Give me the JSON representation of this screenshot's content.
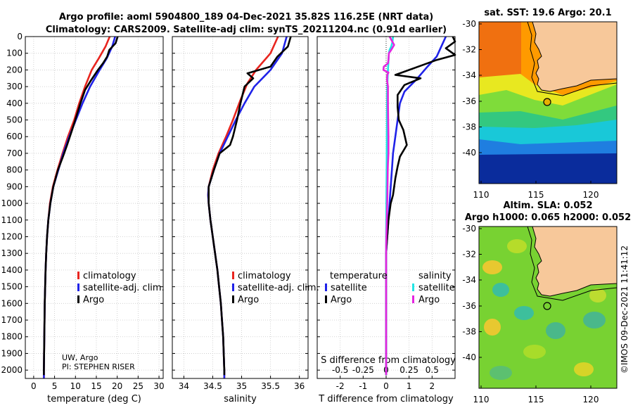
{
  "titles": {
    "line1": "Argo profile: aoml 5904800_189 04-Dec-2021 35.82S 116.25E (NRT data)",
    "line2": "Climatology: CARS2009. Satellite-adj clim: synTS_20211204.nc (0.91d earlier)",
    "sst_map": "sat. SST: 19.6 Argo: 20.1",
    "sla_map_1": "Altim. SLA: 0.052",
    "sla_map_2": "Argo h1000: 0.065 h2000: 0.052",
    "watermark": "©IMOS 09-Dec-2021 11:41:12"
  },
  "credit": {
    "line1": "UW, Argo",
    "line2": "PI: STEPHEN RISER"
  },
  "colors": {
    "climatology": "#e8251f",
    "satellite": "#1f22e8",
    "argo": "#000000",
    "s_satellite": "#22e5e5",
    "s_argo": "#e525e0",
    "land": "#f7c89a"
  },
  "chart_data": [
    {
      "type": "line",
      "title": "temperature",
      "xlabel": "temperature (deg C)",
      "ylabel": "depth",
      "xlim": [
        -2,
        31
      ],
      "ylim": [
        2050,
        0
      ],
      "xticks": [
        0,
        5,
        10,
        15,
        20,
        25,
        30
      ],
      "yticks": [
        0,
        100,
        200,
        300,
        400,
        500,
        600,
        700,
        800,
        900,
        1000,
        1100,
        1200,
        1300,
        1400,
        1500,
        1600,
        1700,
        1800,
        1900,
        2000
      ],
      "legend": [
        "climatology",
        "satellite-adj. clim.",
        "Argo"
      ],
      "series": [
        {
          "name": "climatology",
          "color": "#e8251f",
          "points": [
            [
              18.2,
              0
            ],
            [
              17.2,
              60
            ],
            [
              15.6,
              130
            ],
            [
              13.9,
              200
            ],
            [
              12.3,
              300
            ],
            [
              10.9,
              400
            ],
            [
              9.7,
              500
            ],
            [
              8.2,
              600
            ],
            [
              6.9,
              700
            ],
            [
              5.7,
              800
            ],
            [
              4.6,
              900
            ],
            [
              3.9,
              1000
            ],
            [
              3.5,
              1100
            ],
            [
              3.2,
              1200
            ],
            [
              3,
              1300
            ],
            [
              2.85,
              1400
            ],
            [
              2.75,
              1500
            ],
            [
              2.65,
              1600
            ],
            [
              2.6,
              1700
            ],
            [
              2.55,
              1800
            ],
            [
              2.5,
              1900
            ],
            [
              2.45,
              2000
            ],
            [
              2.45,
              2050
            ]
          ]
        },
        {
          "name": "satellite-adj. clim.",
          "color": "#1f22e8",
          "points": [
            [
              19.5,
              0
            ],
            [
              18.8,
              60
            ],
            [
              17.5,
              130
            ],
            [
              15.8,
              200
            ],
            [
              13.5,
              300
            ],
            [
              11.7,
              400
            ],
            [
              10.1,
              500
            ],
            [
              8.5,
              600
            ],
            [
              7.1,
              700
            ],
            [
              5.9,
              800
            ],
            [
              4.7,
              900
            ],
            [
              4,
              1000
            ],
            [
              3.5,
              1100
            ],
            [
              3.2,
              1200
            ],
            [
              3,
              1300
            ],
            [
              2.85,
              1400
            ],
            [
              2.75,
              1500
            ],
            [
              2.65,
              1600
            ],
            [
              2.6,
              1700
            ],
            [
              2.55,
              1800
            ],
            [
              2.5,
              1900
            ],
            [
              2.45,
              2000
            ],
            [
              2.45,
              2050
            ]
          ]
        },
        {
          "name": "Argo",
          "color": "#000000",
          "points": [
            [
              20.1,
              0
            ],
            [
              19.6,
              40
            ],
            [
              18.1,
              80
            ],
            [
              17.6,
              120
            ],
            [
              16.6,
              160
            ],
            [
              15.4,
              200
            ],
            [
              13.8,
              260
            ],
            [
              12.3,
              320
            ],
            [
              11.2,
              400
            ],
            [
              10.2,
              480
            ],
            [
              9.2,
              560
            ],
            [
              8,
              650
            ],
            [
              7,
              720
            ],
            [
              5.8,
              800
            ],
            [
              4.7,
              900
            ],
            [
              4,
              1000
            ],
            [
              3.5,
              1100
            ],
            [
              3.2,
              1200
            ],
            [
              3,
              1300
            ],
            [
              2.85,
              1400
            ],
            [
              2.75,
              1500
            ],
            [
              2.65,
              1600
            ],
            [
              2.6,
              1700
            ],
            [
              2.55,
              1800
            ],
            [
              2.5,
              1900
            ],
            [
              2.45,
              2000
            ],
            [
              2.45,
              2030
            ]
          ]
        }
      ]
    },
    {
      "type": "line",
      "title": "salinity",
      "xlabel": "salinity",
      "ylabel": "depth",
      "xlim": [
        33.8,
        36.15
      ],
      "ylim": [
        2050,
        0
      ],
      "xticks": [
        34,
        34.5,
        35,
        35.5,
        36
      ],
      "legend": [
        "climatology",
        "satellite-adj. clim.",
        "Argo"
      ],
      "series": [
        {
          "name": "climatology",
          "color": "#e8251f",
          "points": [
            [
              35.63,
              0
            ],
            [
              35.5,
              100
            ],
            [
              35.25,
              200
            ],
            [
              35.1,
              280
            ],
            [
              34.98,
              380
            ],
            [
              34.85,
              500
            ],
            [
              34.73,
              600
            ],
            [
              34.6,
              700
            ],
            [
              34.5,
              800
            ],
            [
              34.43,
              900
            ],
            [
              34.42,
              950
            ],
            [
              34.43,
              1000
            ],
            [
              34.46,
              1100
            ],
            [
              34.5,
              1200
            ],
            [
              34.54,
              1300
            ],
            [
              34.58,
              1400
            ],
            [
              34.61,
              1500
            ],
            [
              34.64,
              1600
            ],
            [
              34.66,
              1700
            ],
            [
              34.68,
              1800
            ],
            [
              34.69,
              1900
            ],
            [
              34.7,
              2000
            ],
            [
              34.7,
              2050
            ]
          ]
        },
        {
          "name": "satellite-adj. clim.",
          "color": "#1f22e8",
          "points": [
            [
              35.78,
              0
            ],
            [
              35.7,
              100
            ],
            [
              35.5,
              200
            ],
            [
              35.22,
              300
            ],
            [
              35.05,
              400
            ],
            [
              34.9,
              500
            ],
            [
              34.76,
              600
            ],
            [
              34.62,
              700
            ],
            [
              34.52,
              800
            ],
            [
              34.43,
              900
            ],
            [
              34.42,
              950
            ],
            [
              34.43,
              1000
            ],
            [
              34.46,
              1100
            ],
            [
              34.5,
              1200
            ],
            [
              34.54,
              1300
            ],
            [
              34.58,
              1400
            ],
            [
              34.61,
              1500
            ],
            [
              34.64,
              1600
            ],
            [
              34.66,
              1700
            ],
            [
              34.68,
              1800
            ],
            [
              34.69,
              1900
            ],
            [
              34.7,
              2000
            ],
            [
              34.7,
              2050
            ]
          ]
        },
        {
          "name": "Argo",
          "color": "#000000",
          "points": [
            [
              35.85,
              0
            ],
            [
              35.8,
              60
            ],
            [
              35.62,
              120
            ],
            [
              35.5,
              180
            ],
            [
              35.1,
              220
            ],
            [
              35.2,
              250
            ],
            [
              35.05,
              300
            ],
            [
              34.98,
              400
            ],
            [
              34.92,
              500
            ],
            [
              34.85,
              600
            ],
            [
              34.8,
              650
            ],
            [
              34.62,
              700
            ],
            [
              34.52,
              800
            ],
            [
              34.43,
              900
            ],
            [
              34.43,
              1000
            ],
            [
              34.46,
              1100
            ],
            [
              34.5,
              1200
            ],
            [
              34.54,
              1300
            ],
            [
              34.58,
              1400
            ],
            [
              34.61,
              1500
            ],
            [
              34.64,
              1600
            ],
            [
              34.66,
              1700
            ],
            [
              34.68,
              1800
            ],
            [
              34.69,
              1900
            ],
            [
              34.7,
              2000
            ],
            [
              34.7,
              2030
            ]
          ]
        }
      ]
    },
    {
      "type": "line",
      "title": "difference from climatology",
      "xlabel": "T difference from climatology",
      "xlabel_top": "S difference from climatology",
      "ylabel": "depth",
      "xlim": [
        -3,
        3
      ],
      "ylim": [
        2050,
        0
      ],
      "xticks": [
        -2,
        -1,
        0,
        1,
        2
      ],
      "xticks_top": [
        -0.5,
        -0.25,
        0,
        0.25,
        0.5
      ],
      "xtick_labels_top": [
        "-0.5",
        "-0.25",
        "0",
        "0.25",
        "0.5"
      ],
      "legend_left_title": "temperature",
      "legend_right_title": "salinity",
      "legend_left": [
        "satellite",
        "Argo"
      ],
      "legend_right": [
        "satellite",
        "Argo"
      ],
      "series": [
        {
          "name": "T satellite",
          "color": "#1f22e8",
          "points": [
            [
              2.6,
              0
            ],
            [
              2.4,
              60
            ],
            [
              2.2,
              120
            ],
            [
              1.8,
              180
            ],
            [
              1.3,
              260
            ],
            [
              0.8,
              330
            ],
            [
              0.6,
              400
            ],
            [
              0.5,
              500
            ],
            [
              0.4,
              600
            ],
            [
              0.3,
              700
            ],
            [
              0.25,
              800
            ],
            [
              0.2,
              900
            ],
            [
              0.15,
              1000
            ],
            [
              0.1,
              1100
            ],
            [
              0.05,
              1200
            ],
            [
              0,
              1300
            ],
            [
              0,
              2030
            ]
          ]
        },
        {
          "name": "T Argo",
          "color": "#000000",
          "points": [
            [
              2.9,
              0
            ],
            [
              3,
              30
            ],
            [
              2.6,
              70
            ],
            [
              3,
              110
            ],
            [
              2.2,
              140
            ],
            [
              1.6,
              170
            ],
            [
              0.4,
              230
            ],
            [
              1.5,
              250
            ],
            [
              0.8,
              290
            ],
            [
              0.5,
              350
            ],
            [
              0.5,
              420
            ],
            [
              0.55,
              500
            ],
            [
              0.75,
              560
            ],
            [
              0.9,
              650
            ],
            [
              0.6,
              720
            ],
            [
              0.5,
              780
            ],
            [
              0.4,
              850
            ],
            [
              0.3,
              950
            ],
            [
              0.2,
              1000
            ],
            [
              0.1,
              1100
            ],
            [
              0.05,
              1200
            ],
            [
              0,
              1300
            ],
            [
              0,
              2030
            ]
          ]
        },
        {
          "name": "S satellite",
          "color": "#22e5e5",
          "points": [
            [
              0.3,
              0
            ],
            [
              0.28,
              30
            ],
            [
              0.22,
              60
            ],
            [
              0.15,
              80
            ],
            [
              0.12,
              100
            ],
            [
              0.1,
              150
            ],
            [
              0.08,
              200
            ],
            [
              0.05,
              300
            ],
            [
              0.04,
              400
            ],
            [
              0.03,
              600
            ],
            [
              0.02,
              800
            ],
            [
              0.01,
              1000
            ],
            [
              0,
              1200
            ],
            [
              0,
              2030
            ]
          ]
        },
        {
          "name": "S Argo",
          "color": "#e525e0",
          "points": [
            [
              0.15,
              0
            ],
            [
              0.35,
              50
            ],
            [
              0.22,
              80
            ],
            [
              0.12,
              100
            ],
            [
              0.1,
              140
            ],
            [
              0.08,
              160
            ],
            [
              -0.1,
              180
            ],
            [
              -0.12,
              200
            ],
            [
              0.1,
              215
            ],
            [
              0.05,
              230
            ],
            [
              0.04,
              260
            ],
            [
              0.08,
              300
            ],
            [
              0.08,
              400
            ],
            [
              0.09,
              500
            ],
            [
              0.1,
              600
            ],
            [
              0.1,
              700
            ],
            [
              0.08,
              760
            ],
            [
              0.07,
              800
            ],
            [
              0.06,
              900
            ],
            [
              0.05,
              1000
            ],
            [
              0.03,
              1100
            ],
            [
              0,
              1250
            ],
            [
              0,
              2030
            ]
          ]
        }
      ]
    }
  ],
  "maps": {
    "lat_ticks": [
      "-30",
      "-32",
      "-34",
      "-36",
      "-38",
      "-40"
    ],
    "lon_ticks": [
      "110",
      "115",
      "120"
    ],
    "argo_location": {
      "lon": 116.25,
      "lat": -35.82
    },
    "extent": {
      "lon": [
        109.8,
        122.6
      ],
      "lat": [
        -29.6,
        -41.2
      ]
    }
  }
}
